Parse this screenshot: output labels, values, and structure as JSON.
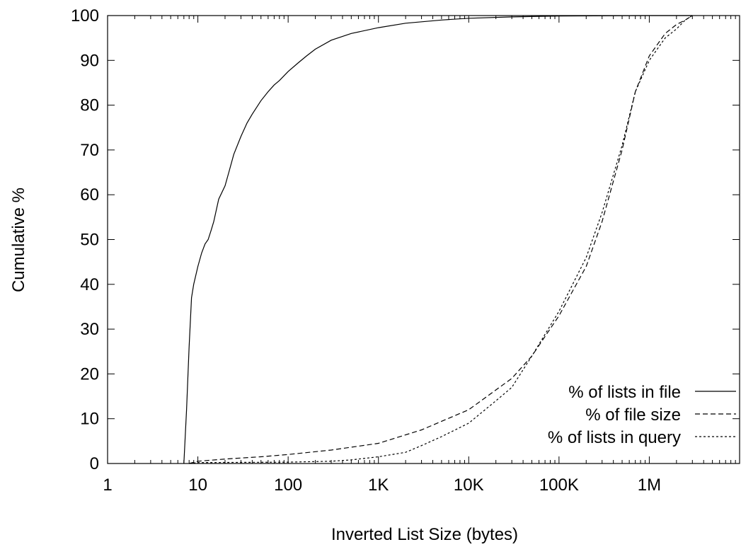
{
  "chart_data": {
    "type": "line",
    "title": "",
    "xlabel": "Inverted List Size (bytes)",
    "ylabel": "Cumulative %",
    "x_scale": "log",
    "xlim": [
      1,
      10000000
    ],
    "ylim": [
      0,
      100
    ],
    "x_ticks": [
      {
        "value": 1,
        "label": "1"
      },
      {
        "value": 10,
        "label": "10"
      },
      {
        "value": 100,
        "label": "100"
      },
      {
        "value": 1000,
        "label": "1K"
      },
      {
        "value": 10000,
        "label": "10K"
      },
      {
        "value": 100000,
        "label": "100K"
      },
      {
        "value": 1000000,
        "label": "1M"
      }
    ],
    "y_ticks": [
      0,
      10,
      20,
      30,
      40,
      50,
      60,
      70,
      80,
      90,
      100
    ],
    "grid": false,
    "legend_position": "bottom-right",
    "series": [
      {
        "name": "% of lists in file",
        "dash": "solid",
        "x": [
          7,
          7.5,
          8,
          8.5,
          9,
          10,
          11,
          12,
          13,
          14,
          15,
          17,
          20,
          22,
          25,
          30,
          35,
          40,
          50,
          60,
          70,
          80,
          100,
          130,
          160,
          200,
          300,
          500,
          1000,
          2000,
          5000,
          10000,
          30000,
          100000,
          1000000,
          3000000
        ],
        "y": [
          0,
          12,
          26,
          37,
          40,
          44,
          47,
          49,
          50,
          52,
          54,
          59,
          62,
          65,
          69,
          73,
          76,
          78,
          81,
          83,
          84.5,
          85.5,
          87.5,
          89.5,
          91,
          92.5,
          94.5,
          96,
          97.3,
          98.3,
          99,
          99.4,
          99.7,
          99.9,
          100,
          100
        ]
      },
      {
        "name": "% of file size",
        "dash": "dashed",
        "x": [
          8,
          10,
          20,
          50,
          100,
          300,
          1000,
          3000,
          10000,
          30000,
          50000,
          100000,
          200000,
          300000,
          500000,
          700000,
          1000000,
          1500000,
          2000000,
          2500000,
          3000000
        ],
        "y": [
          0,
          0.5,
          1,
          1.5,
          2,
          3,
          4.5,
          7.5,
          12,
          19,
          24,
          33,
          44,
          54,
          70,
          83,
          91,
          96,
          98,
          99,
          100
        ]
      },
      {
        "name": "% of lists in query",
        "dash": "dotted",
        "x": [
          8,
          10,
          100,
          300,
          500,
          1000,
          2000,
          3000,
          5000,
          10000,
          20000,
          30000,
          50000,
          100000,
          200000,
          300000,
          500000,
          700000,
          1000000,
          1500000,
          2000000,
          2500000,
          3000000
        ],
        "y": [
          0,
          0.2,
          0.3,
          0.5,
          0.8,
          1.5,
          2.5,
          4,
          6,
          9,
          14,
          17,
          24,
          34,
          46,
          56,
          71,
          83,
          90,
          95,
          97,
          99,
          100
        ]
      }
    ]
  }
}
